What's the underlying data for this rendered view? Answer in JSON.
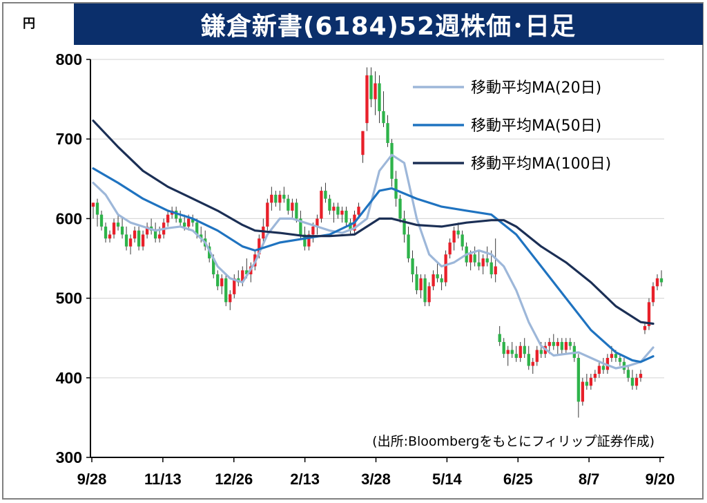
{
  "header": {
    "unit": "円",
    "title": "鎌倉新書(6184)52週株価･日足"
  },
  "source_note": "(出所:Bloombergをもとにフィリップ証券作成)",
  "colors": {
    "up": "#e8202a",
    "down": "#2eb34a",
    "ma20": "#9db7d9",
    "ma50": "#1f73c0",
    "ma100": "#1b2f55",
    "title_bg": "#0b2f6b"
  },
  "chart_data": {
    "type": "candlestick",
    "title": "鎌倉新書(6184)52週株価･日足",
    "ylabel": "円",
    "ylim": [
      300,
      800
    ],
    "yticks": [
      300,
      400,
      500,
      600,
      700,
      800
    ],
    "grid": true,
    "legend_position": "top-right",
    "x_ticks": [
      "9/28",
      "11/13",
      "12/26",
      "2/13",
      "3/28",
      "5/14",
      "6/25",
      "8/7",
      "9/20"
    ],
    "legend": [
      {
        "key": "ma20",
        "label": "移動平均MA(20日)"
      },
      {
        "key": "ma50",
        "label": "移動平均MA(50日)"
      },
      {
        "key": "ma100",
        "label": "移動平均MA(100日)"
      }
    ],
    "ma_series": [
      {
        "key": "ma20",
        "points": [
          [
            0,
            645
          ],
          [
            3,
            630
          ],
          [
            6,
            605
          ],
          [
            9,
            595
          ],
          [
            12,
            590
          ],
          [
            15,
            585
          ],
          [
            18,
            588
          ],
          [
            21,
            590
          ],
          [
            24,
            585
          ],
          [
            27,
            570
          ],
          [
            30,
            540
          ],
          [
            33,
            525
          ],
          [
            36,
            520
          ],
          [
            39,
            545
          ],
          [
            42,
            580
          ],
          [
            45,
            600
          ],
          [
            48,
            600
          ],
          [
            51,
            595
          ],
          [
            54,
            590
          ],
          [
            57,
            585
          ],
          [
            60,
            582
          ],
          [
            63,
            588
          ],
          [
            66,
            600
          ],
          [
            69,
            660
          ],
          [
            72,
            680
          ],
          [
            75,
            670
          ],
          [
            78,
            600
          ],
          [
            81,
            555
          ],
          [
            84,
            540
          ],
          [
            87,
            545
          ],
          [
            90,
            555
          ],
          [
            93,
            560
          ],
          [
            96,
            555
          ],
          [
            99,
            540
          ],
          [
            102,
            510
          ],
          [
            105,
            470
          ],
          [
            108,
            440
          ],
          [
            111,
            428
          ],
          [
            114,
            430
          ],
          [
            117,
            432
          ],
          [
            120,
            425
          ],
          [
            123,
            418
          ],
          [
            126,
            412
          ],
          [
            129,
            415
          ],
          [
            132,
            420
          ],
          [
            135,
            438
          ]
        ]
      },
      {
        "key": "ma50",
        "points": [
          [
            0,
            663
          ],
          [
            6,
            645
          ],
          [
            12,
            625
          ],
          [
            18,
            610
          ],
          [
            24,
            600
          ],
          [
            30,
            585
          ],
          [
            36,
            565
          ],
          [
            39,
            560
          ],
          [
            45,
            570
          ],
          [
            51,
            575
          ],
          [
            57,
            580
          ],
          [
            63,
            595
          ],
          [
            66,
            615
          ],
          [
            69,
            635
          ],
          [
            72,
            638
          ],
          [
            78,
            625
          ],
          [
            84,
            615
          ],
          [
            90,
            610
          ],
          [
            96,
            605
          ],
          [
            102,
            580
          ],
          [
            108,
            540
          ],
          [
            114,
            500
          ],
          [
            120,
            460
          ],
          [
            126,
            432
          ],
          [
            130,
            422
          ],
          [
            132,
            420
          ],
          [
            135,
            427
          ]
        ]
      },
      {
        "key": "ma100",
        "points": [
          [
            0,
            723
          ],
          [
            6,
            690
          ],
          [
            12,
            660
          ],
          [
            18,
            640
          ],
          [
            24,
            625
          ],
          [
            30,
            610
          ],
          [
            36,
            592
          ],
          [
            39,
            585
          ],
          [
            45,
            582
          ],
          [
            51,
            578
          ],
          [
            57,
            578
          ],
          [
            63,
            580
          ],
          [
            66,
            590
          ],
          [
            69,
            600
          ],
          [
            72,
            600
          ],
          [
            78,
            592
          ],
          [
            84,
            590
          ],
          [
            90,
            595
          ],
          [
            96,
            598
          ],
          [
            99,
            598
          ],
          [
            102,
            590
          ],
          [
            108,
            565
          ],
          [
            114,
            545
          ],
          [
            120,
            520
          ],
          [
            126,
            490
          ],
          [
            132,
            470
          ],
          [
            135,
            468
          ]
        ]
      }
    ],
    "candles": [
      [
        0,
        615,
        620,
        600,
        620
      ],
      [
        1,
        620,
        625,
        590,
        605
      ],
      [
        2,
        605,
        610,
        585,
        590
      ],
      [
        3,
        590,
        595,
        570,
        575
      ],
      [
        4,
        575,
        585,
        570,
        580
      ],
      [
        5,
        580,
        600,
        575,
        595
      ],
      [
        6,
        595,
        605,
        585,
        590
      ],
      [
        7,
        590,
        600,
        575,
        580
      ],
      [
        8,
        580,
        590,
        560,
        565
      ],
      [
        9,
        565,
        580,
        555,
        575
      ],
      [
        10,
        575,
        590,
        570,
        585
      ],
      [
        11,
        585,
        590,
        560,
        565
      ],
      [
        12,
        565,
        585,
        560,
        580
      ],
      [
        13,
        580,
        595,
        575,
        590
      ],
      [
        14,
        590,
        600,
        580,
        585
      ],
      [
        15,
        585,
        595,
        570,
        575
      ],
      [
        16,
        575,
        590,
        570,
        580
      ],
      [
        17,
        580,
        600,
        575,
        595
      ],
      [
        18,
        595,
        610,
        590,
        605
      ],
      [
        19,
        605,
        615,
        600,
        610
      ],
      [
        20,
        610,
        615,
        595,
        600
      ],
      [
        21,
        600,
        610,
        590,
        595
      ],
      [
        22,
        595,
        605,
        585,
        590
      ],
      [
        23,
        590,
        605,
        585,
        600
      ],
      [
        24,
        600,
        605,
        590,
        595
      ],
      [
        25,
        595,
        600,
        575,
        580
      ],
      [
        26,
        580,
        590,
        570,
        575
      ],
      [
        27,
        575,
        585,
        560,
        565
      ],
      [
        28,
        565,
        570,
        545,
        550
      ],
      [
        29,
        550,
        555,
        525,
        530
      ],
      [
        30,
        530,
        535,
        510,
        515
      ],
      [
        31,
        515,
        530,
        505,
        525
      ],
      [
        32,
        525,
        530,
        490,
        495
      ],
      [
        33,
        495,
        510,
        485,
        505
      ],
      [
        34,
        505,
        530,
        500,
        525
      ],
      [
        35,
        525,
        535,
        515,
        520
      ],
      [
        36,
        520,
        540,
        515,
        535
      ],
      [
        37,
        535,
        550,
        525,
        530
      ],
      [
        38,
        530,
        545,
        520,
        540
      ],
      [
        39,
        540,
        560,
        535,
        555
      ],
      [
        40,
        555,
        580,
        550,
        575
      ],
      [
        41,
        575,
        600,
        570,
        590
      ],
      [
        42,
        590,
        625,
        585,
        620
      ],
      [
        43,
        620,
        640,
        610,
        630
      ],
      [
        44,
        630,
        635,
        615,
        620
      ],
      [
        45,
        620,
        635,
        610,
        630
      ],
      [
        46,
        630,
        640,
        620,
        625
      ],
      [
        47,
        625,
        630,
        605,
        610
      ],
      [
        48,
        610,
        625,
        600,
        620
      ],
      [
        49,
        620,
        625,
        595,
        600
      ],
      [
        50,
        600,
        610,
        575,
        580
      ],
      [
        51,
        580,
        590,
        560,
        565
      ],
      [
        52,
        565,
        585,
        560,
        580
      ],
      [
        53,
        580,
        595,
        570,
        590
      ],
      [
        54,
        590,
        605,
        580,
        600
      ],
      [
        55,
        600,
        640,
        595,
        635
      ],
      [
        56,
        635,
        645,
        620,
        625
      ],
      [
        57,
        625,
        630,
        605,
        610
      ],
      [
        58,
        610,
        620,
        595,
        615
      ],
      [
        59,
        615,
        620,
        600,
        605
      ],
      [
        60,
        605,
        615,
        595,
        610
      ],
      [
        61,
        610,
        615,
        590,
        595
      ],
      [
        62,
        595,
        600,
        580,
        585
      ],
      [
        63,
        585,
        610,
        580,
        605
      ],
      [
        64,
        605,
        620,
        600,
        615
      ],
      [
        65,
        680,
        710,
        670,
        710
      ],
      [
        66,
        720,
        790,
        710,
        780
      ],
      [
        67,
        780,
        790,
        740,
        750
      ],
      [
        68,
        750,
        785,
        730,
        770
      ],
      [
        69,
        770,
        780,
        720,
        735
      ],
      [
        70,
        735,
        760,
        715,
        720
      ],
      [
        71,
        720,
        730,
        690,
        695
      ],
      [
        72,
        695,
        700,
        640,
        650
      ],
      [
        73,
        650,
        660,
        615,
        625
      ],
      [
        74,
        625,
        630,
        595,
        600
      ],
      [
        75,
        600,
        610,
        570,
        580
      ],
      [
        76,
        580,
        590,
        545,
        550
      ],
      [
        77,
        550,
        560,
        520,
        530
      ],
      [
        78,
        530,
        540,
        505,
        510
      ],
      [
        79,
        510,
        530,
        500,
        525
      ],
      [
        80,
        525,
        530,
        490,
        495
      ],
      [
        81,
        495,
        520,
        490,
        515
      ],
      [
        82,
        515,
        535,
        510,
        530
      ],
      [
        83,
        530,
        545,
        520,
        525
      ],
      [
        84,
        525,
        530,
        510,
        520
      ],
      [
        85,
        520,
        560,
        515,
        555
      ],
      [
        86,
        555,
        575,
        550,
        570
      ],
      [
        87,
        570,
        590,
        560,
        585
      ],
      [
        88,
        585,
        595,
        575,
        580
      ],
      [
        89,
        580,
        585,
        560,
        565
      ],
      [
        90,
        565,
        570,
        540,
        545
      ],
      [
        91,
        545,
        560,
        535,
        555
      ],
      [
        92,
        555,
        565,
        540,
        545
      ],
      [
        93,
        545,
        560,
        535,
        540
      ],
      [
        94,
        540,
        555,
        530,
        550
      ],
      [
        95,
        550,
        565,
        540,
        545
      ],
      [
        96,
        545,
        560,
        525,
        530
      ],
      [
        97,
        530,
        575,
        520,
        540
      ],
      [
        98,
        455,
        465,
        440,
        445
      ],
      [
        99,
        445,
        450,
        425,
        430
      ],
      [
        100,
        430,
        440,
        415,
        435
      ],
      [
        101,
        435,
        445,
        425,
        430
      ],
      [
        102,
        430,
        440,
        420,
        425
      ],
      [
        103,
        425,
        445,
        420,
        440
      ],
      [
        104,
        440,
        450,
        425,
        430
      ],
      [
        105,
        430,
        440,
        410,
        415
      ],
      [
        106,
        415,
        425,
        405,
        420
      ],
      [
        107,
        420,
        440,
        415,
        435
      ],
      [
        108,
        435,
        445,
        425,
        430
      ],
      [
        109,
        430,
        445,
        425,
        440
      ],
      [
        110,
        440,
        450,
        430,
        445
      ],
      [
        111,
        445,
        455,
        435,
        440
      ],
      [
        112,
        440,
        450,
        430,
        445
      ],
      [
        113,
        445,
        450,
        430,
        435
      ],
      [
        114,
        435,
        450,
        430,
        445
      ],
      [
        115,
        445,
        450,
        435,
        440
      ],
      [
        116,
        440,
        445,
        420,
        425
      ],
      [
        117,
        425,
        430,
        350,
        370
      ],
      [
        118,
        370,
        400,
        365,
        395
      ],
      [
        119,
        395,
        405,
        385,
        390
      ],
      [
        120,
        390,
        405,
        385,
        400
      ],
      [
        121,
        400,
        410,
        395,
        405
      ],
      [
        122,
        405,
        420,
        400,
        415
      ],
      [
        123,
        415,
        425,
        405,
        410
      ],
      [
        124,
        410,
        430,
        405,
        425
      ],
      [
        125,
        425,
        440,
        420,
        430
      ],
      [
        126,
        430,
        435,
        420,
        425
      ],
      [
        127,
        425,
        430,
        415,
        420
      ],
      [
        128,
        420,
        425,
        405,
        410
      ],
      [
        129,
        410,
        415,
        395,
        400
      ],
      [
        130,
        400,
        410,
        385,
        390
      ],
      [
        131,
        390,
        405,
        385,
        400
      ],
      [
        132,
        400,
        410,
        395,
        405
      ],
      [
        133,
        460,
        470,
        455,
        465
      ],
      [
        134,
        465,
        500,
        460,
        495
      ],
      [
        135,
        495,
        520,
        490,
        515
      ],
      [
        136,
        515,
        530,
        510,
        525
      ],
      [
        137,
        525,
        535,
        515,
        520
      ]
    ]
  }
}
